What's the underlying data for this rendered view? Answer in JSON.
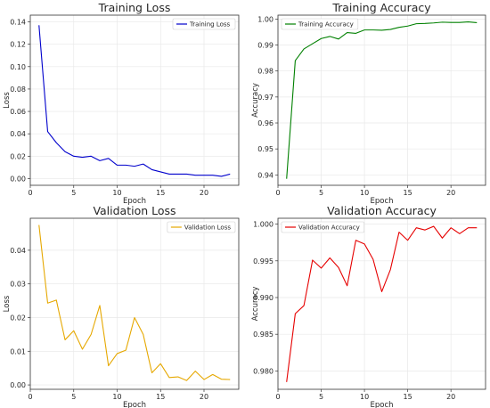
{
  "chart_data": [
    {
      "type": "line",
      "title": "Training Loss",
      "xlabel": "Epoch",
      "ylabel": "Loss",
      "legend": "top-right",
      "grid": true,
      "color": "#0000cc",
      "xlim": [
        0,
        24
      ],
      "ylim": [
        -0.006,
        0.146
      ],
      "xticks": [
        0,
        5,
        10,
        15,
        20
      ],
      "yticks": [
        0.0,
        0.02,
        0.04,
        0.06,
        0.08,
        0.1,
        0.12,
        0.14
      ],
      "ytick_labels": [
        "0.00",
        "0.02",
        "0.04",
        "0.06",
        "0.08",
        "0.10",
        "0.12",
        "0.14"
      ],
      "series": [
        {
          "name": "Training Loss",
          "x": [
            1,
            2,
            3,
            4,
            5,
            6,
            7,
            8,
            9,
            10,
            11,
            12,
            13,
            14,
            15,
            16,
            17,
            18,
            19,
            20,
            21,
            22,
            23
          ],
          "y": [
            0.137,
            0.042,
            0.032,
            0.024,
            0.02,
            0.019,
            0.02,
            0.016,
            0.018,
            0.012,
            0.012,
            0.011,
            0.013,
            0.008,
            0.006,
            0.004,
            0.004,
            0.004,
            0.003,
            0.003,
            0.003,
            0.002,
            0.004
          ]
        }
      ]
    },
    {
      "type": "line",
      "title": "Training Accuracy",
      "xlabel": "Epoch",
      "ylabel": "Accuracy",
      "legend": "top-left",
      "grid": true,
      "color": "#008000",
      "xlim": [
        0,
        24
      ],
      "ylim": [
        0.936,
        1.0015
      ],
      "xticks": [
        0,
        5,
        10,
        15,
        20
      ],
      "yticks": [
        0.94,
        0.95,
        0.96,
        0.97,
        0.98,
        0.99,
        1.0
      ],
      "ytick_labels": [
        "0.94",
        "0.95",
        "0.96",
        "0.97",
        "0.98",
        "0.99",
        "1.00"
      ],
      "series": [
        {
          "name": "Training Accuracy",
          "x": [
            1,
            2,
            3,
            4,
            5,
            6,
            7,
            8,
            9,
            10,
            11,
            12,
            13,
            14,
            15,
            16,
            17,
            18,
            19,
            20,
            21,
            22,
            23
          ],
          "y": [
            0.9385,
            0.984,
            0.9885,
            0.9905,
            0.9925,
            0.9933,
            0.9923,
            0.9948,
            0.9945,
            0.9958,
            0.9958,
            0.9957,
            0.996,
            0.9968,
            0.9973,
            0.9982,
            0.9983,
            0.9985,
            0.9988,
            0.9987,
            0.9987,
            0.9989,
            0.9986
          ]
        }
      ]
    },
    {
      "type": "line",
      "title": "Validation Loss",
      "xlabel": "Epoch",
      "ylabel": "Loss",
      "legend": "top-right",
      "grid": true,
      "color": "#e6a800",
      "xlim": [
        0,
        24
      ],
      "ylim": [
        -0.0013,
        0.0495
      ],
      "xticks": [
        0,
        5,
        10,
        15,
        20
      ],
      "yticks": [
        0.0,
        0.01,
        0.02,
        0.03,
        0.04
      ],
      "ytick_labels": [
        "0.00",
        "0.01",
        "0.02",
        "0.03",
        "0.04"
      ],
      "series": [
        {
          "name": "Validation Loss",
          "x": [
            1,
            2,
            3,
            4,
            5,
            6,
            7,
            8,
            9,
            10,
            11,
            12,
            13,
            14,
            15,
            16,
            17,
            18,
            19,
            20,
            21,
            22,
            23
          ],
          "y": [
            0.0475,
            0.0243,
            0.0252,
            0.0134,
            0.0161,
            0.0106,
            0.015,
            0.0236,
            0.0057,
            0.0093,
            0.0103,
            0.02,
            0.015,
            0.0036,
            0.0063,
            0.0022,
            0.0024,
            0.0013,
            0.0041,
            0.0016,
            0.0031,
            0.0017,
            0.0016
          ]
        }
      ]
    },
    {
      "type": "line",
      "title": "Validation Accuracy",
      "xlabel": "Epoch",
      "ylabel": "Accuracy",
      "legend": "top-left",
      "grid": true,
      "color": "#e60000",
      "xlim": [
        0,
        24
      ],
      "ylim": [
        0.9775,
        1.0008
      ],
      "xticks": [
        0,
        5,
        10,
        15,
        20
      ],
      "yticks": [
        0.98,
        0.985,
        0.99,
        0.995,
        1.0
      ],
      "ytick_labels": [
        "0.980",
        "0.985",
        "0.990",
        "0.995",
        "1.000"
      ],
      "series": [
        {
          "name": "Validation Accuracy",
          "x": [
            1,
            2,
            3,
            4,
            5,
            6,
            7,
            8,
            9,
            10,
            11,
            12,
            13,
            14,
            15,
            16,
            17,
            18,
            19,
            20,
            21,
            22,
            23
          ],
          "y": [
            0.9785,
            0.9878,
            0.9889,
            0.9951,
            0.994,
            0.9954,
            0.9941,
            0.9916,
            0.9978,
            0.9973,
            0.9952,
            0.9908,
            0.9938,
            0.9989,
            0.9978,
            0.9995,
            0.9992,
            0.9997,
            0.9981,
            0.9995,
            0.9987,
            0.9995,
            0.9995
          ]
        }
      ]
    }
  ]
}
